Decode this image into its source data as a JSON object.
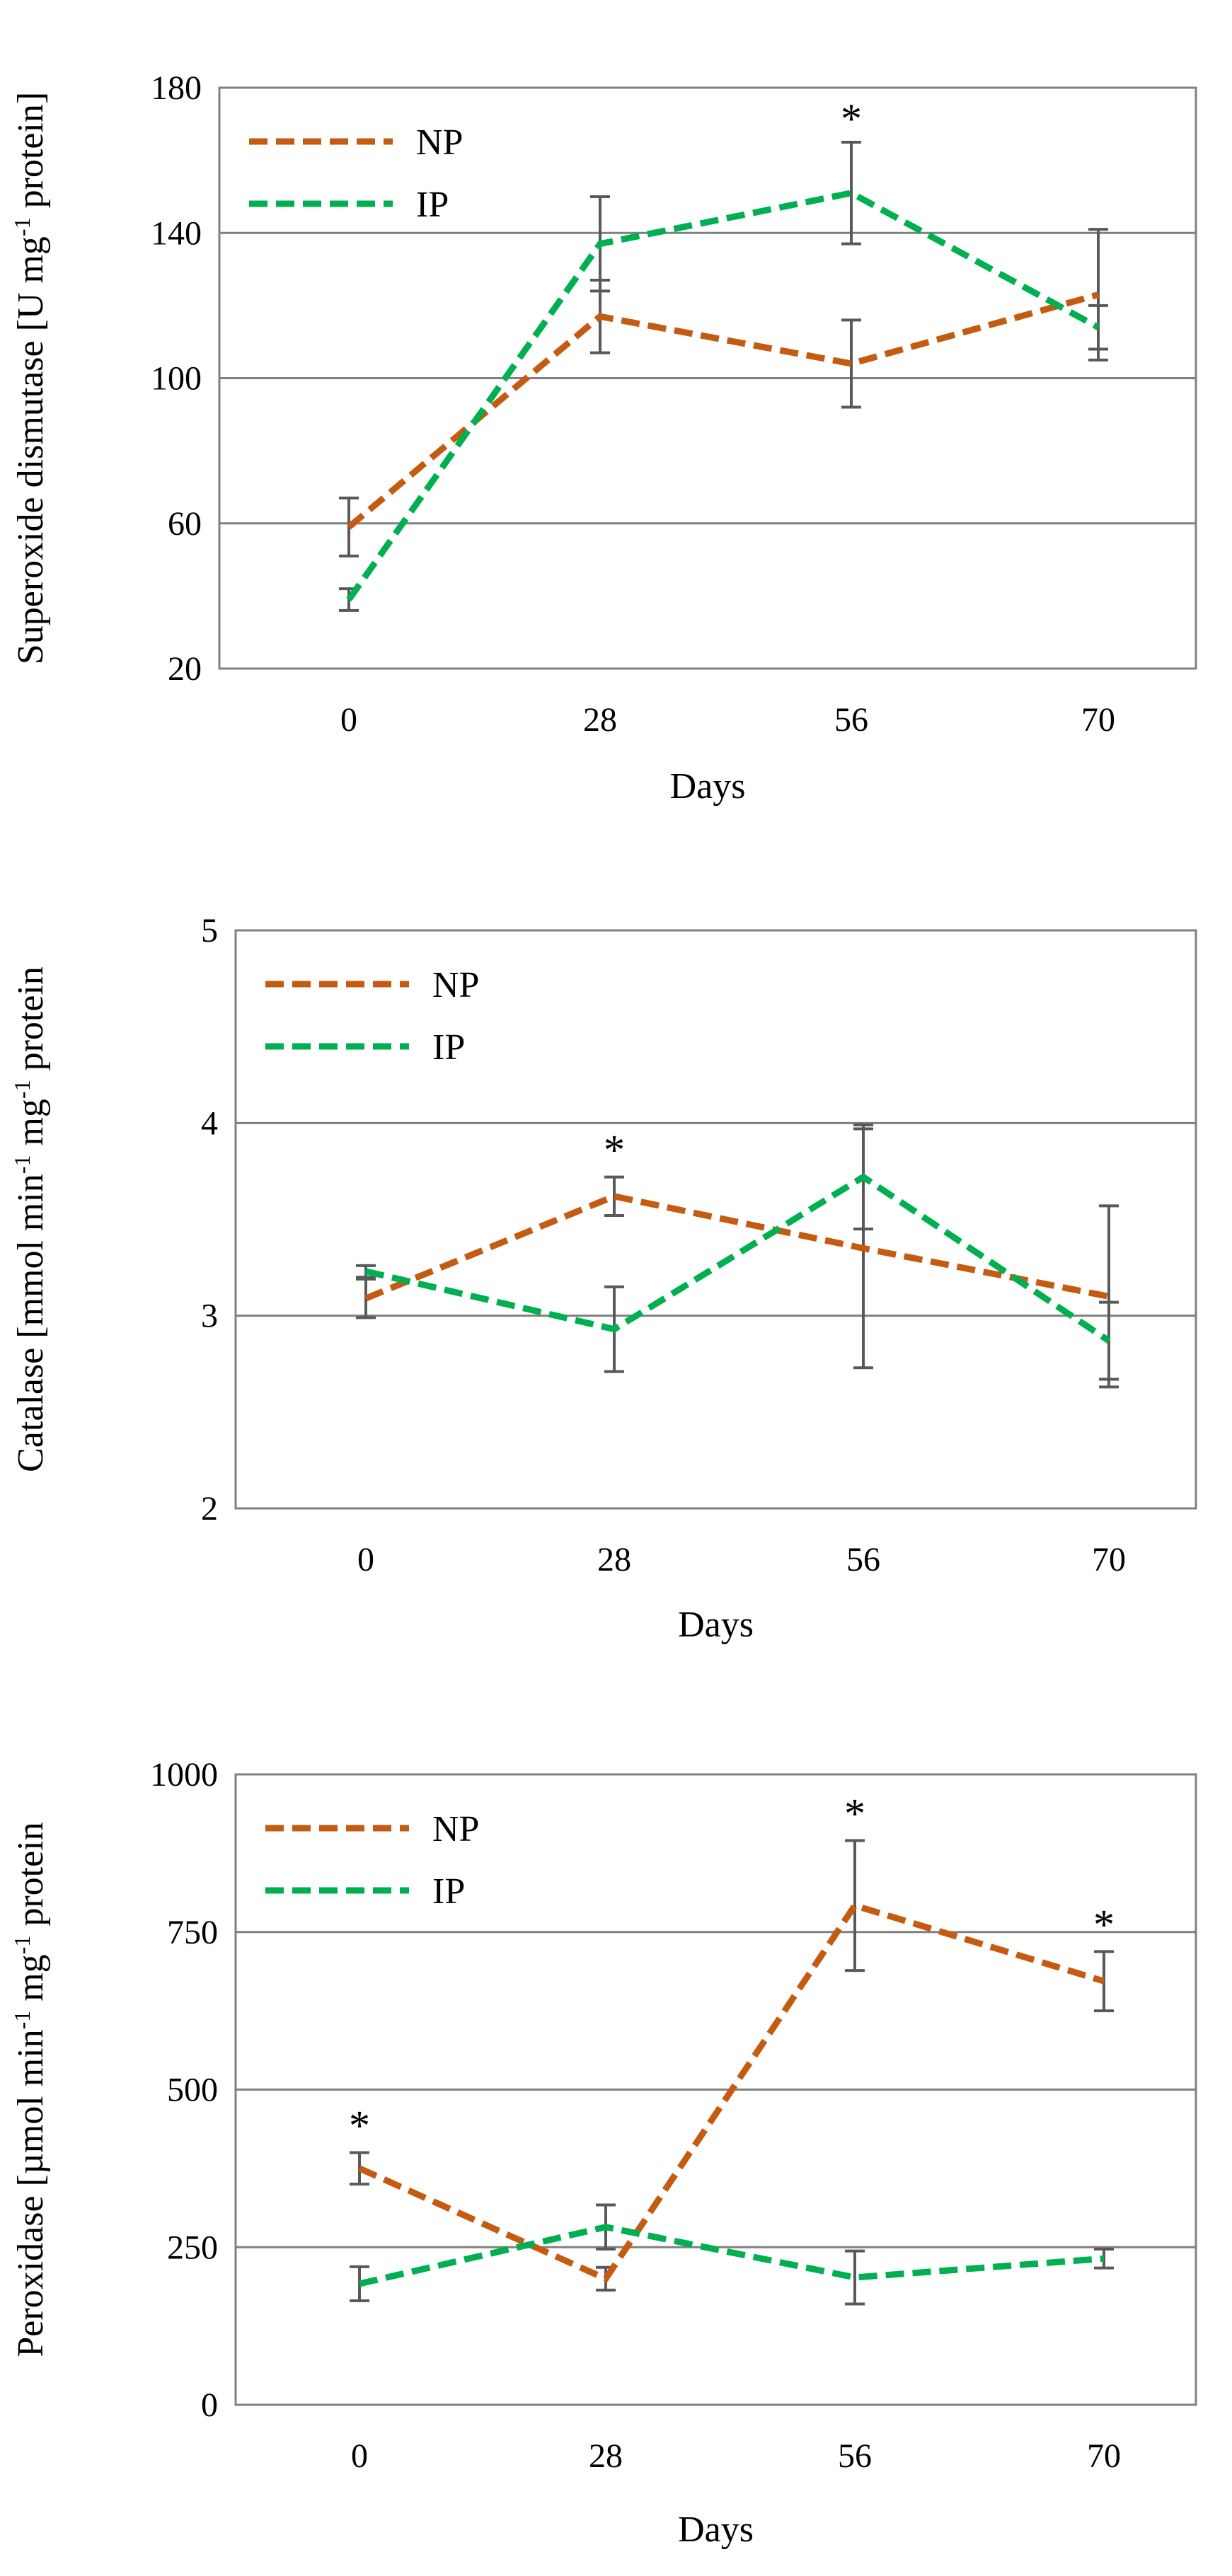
{
  "chart_data": [
    {
      "type": "line",
      "title": "",
      "xlabel": "Days",
      "ylabel": "Superoxide dismutase  [U mg⁻¹ protein]",
      "categories": [
        "0",
        "28",
        "56",
        "70"
      ],
      "ylim": [
        20,
        180
      ],
      "yticks": [
        20,
        60,
        100,
        140,
        180
      ],
      "grid": true,
      "legend": "top-left",
      "series": [
        {
          "name": "NP",
          "color": "#C55A11",
          "values": [
            59,
            117,
            104,
            123
          ],
          "errors": [
            8,
            10,
            12,
            18
          ]
        },
        {
          "name": "IP",
          "color": "#00B050",
          "values": [
            39,
            137,
            151,
            114
          ],
          "errors": [
            3,
            13,
            14,
            6
          ]
        }
      ],
      "annotations": [
        {
          "label": "*",
          "category": "56",
          "value": 164
        }
      ]
    },
    {
      "type": "line",
      "title": "",
      "xlabel": "Days",
      "ylabel": "Catalase [mmol min⁻¹ mg⁻¹ protein",
      "categories": [
        "0",
        "28",
        "56",
        "70"
      ],
      "ylim": [
        2,
        5
      ],
      "yticks": [
        2,
        3,
        4,
        5
      ],
      "grid": true,
      "legend": "top-left",
      "series": [
        {
          "name": "NP",
          "color": "#C55A11",
          "values": [
            3.09,
            3.62,
            3.35,
            3.1
          ],
          "errors": [
            0.1,
            0.1,
            0.62,
            0.47
          ]
        },
        {
          "name": "IP",
          "color": "#00B050",
          "values": [
            3.23,
            2.93,
            3.72,
            2.87
          ],
          "errors": [
            0.03,
            0.22,
            0.27,
            0.2
          ]
        }
      ],
      "annotations": [
        {
          "label": "*",
          "category": "28",
          "value": 3.72
        }
      ]
    },
    {
      "type": "line",
      "title": "",
      "xlabel": "Days",
      "ylabel": "Peroxidase [µmol min⁻¹ mg⁻¹ protein",
      "categories": [
        "0",
        "28",
        "56",
        "70"
      ],
      "ylim": [
        0,
        1000
      ],
      "yticks": [
        0,
        250,
        500,
        750,
        1000
      ],
      "grid": true,
      "legend": "top-left",
      "series": [
        {
          "name": "NP",
          "color": "#C55A11",
          "values": [
            375,
            200,
            792,
            672
          ],
          "errors": [
            25,
            18,
            103,
            47
          ]
        },
        {
          "name": "IP",
          "color": "#00B050",
          "values": [
            192,
            282,
            202,
            232
          ],
          "errors": [
            27,
            35,
            42,
            15
          ]
        }
      ],
      "annotations": [
        {
          "label": "*",
          "category": "0",
          "value": 400
        },
        {
          "label": "*",
          "category": "56",
          "value": 895
        },
        {
          "label": "*",
          "category": "70",
          "value": 719
        }
      ]
    }
  ]
}
